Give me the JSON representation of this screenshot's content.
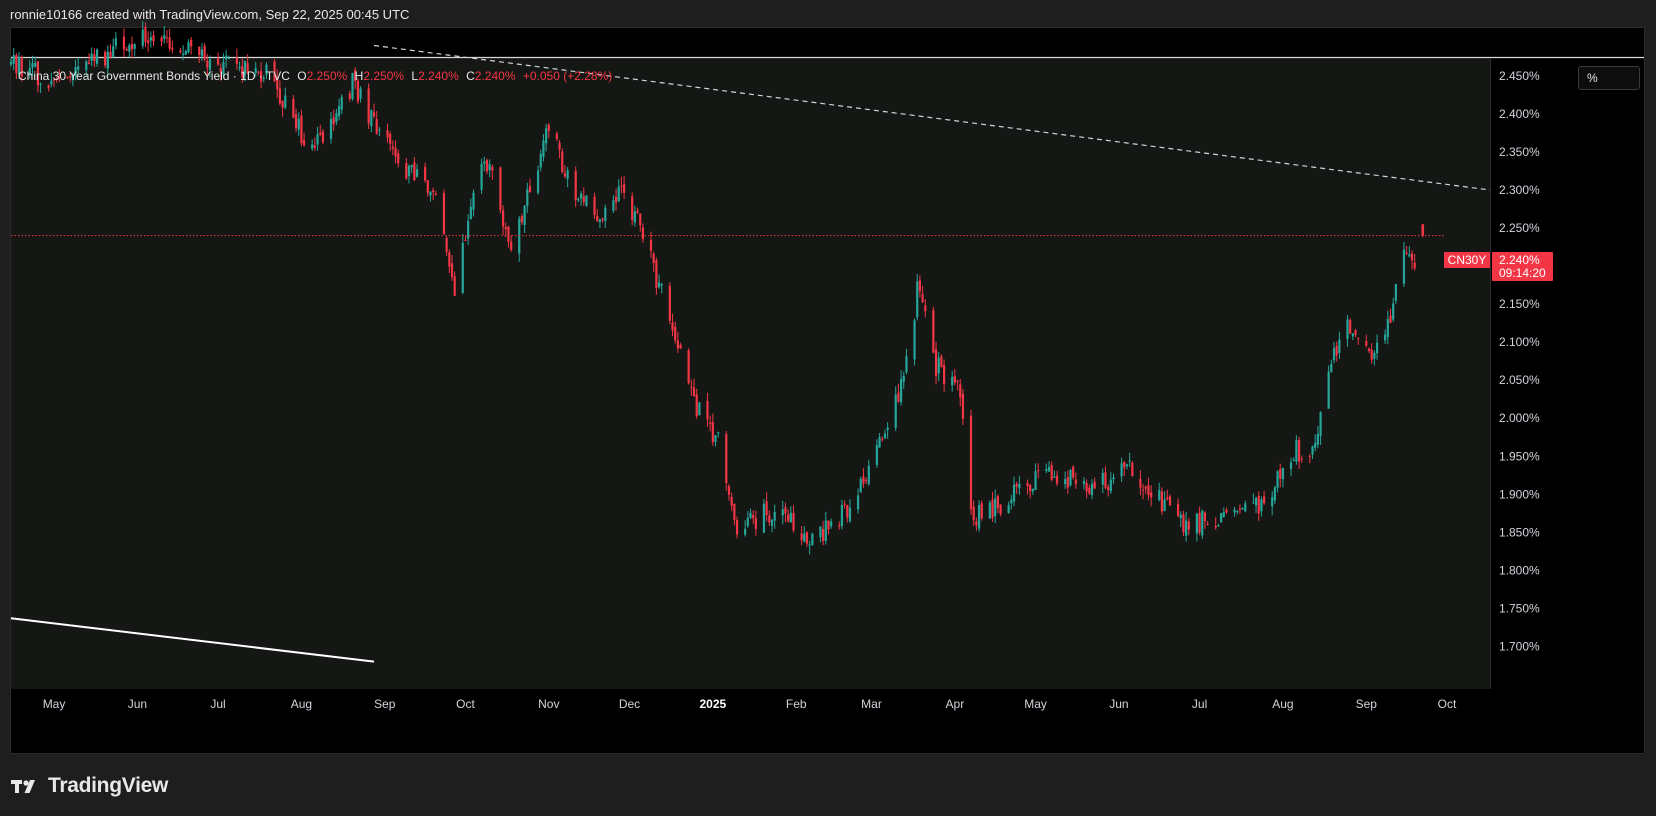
{
  "header": {
    "caption": "ronnie10166 created with TradingView.com, Sep 22, 2025 00:45 UTC"
  },
  "legend": {
    "symbol": "China 30 Year Government Bonds Yield · 1D · TVC",
    "open_label": "O",
    "open_value": "2.250%",
    "high_label": "H",
    "high_value": "2.250%",
    "low_label": "L",
    "low_value": "2.240%",
    "close_label": "C",
    "close_value": "2.240%",
    "change": "+0.050 (+2.28%)"
  },
  "price_scale": {
    "unit": "%",
    "ticks": [
      "2.450%",
      "2.400%",
      "2.350%",
      "2.300%",
      "2.250%",
      "2.200%",
      "2.150%",
      "2.100%",
      "2.050%",
      "2.000%",
      "1.950%",
      "1.900%",
      "1.850%",
      "1.800%",
      "1.750%",
      "1.700%"
    ],
    "last_price_label": "2.240%",
    "countdown": "09:14:20",
    "symbol_tag": "CN30Y"
  },
  "time_scale": {
    "labels": [
      "May",
      "Jun",
      "Jul",
      "Aug",
      "Sep",
      "Oct",
      "Nov",
      "Dec",
      "2025",
      "Feb",
      "Mar",
      "Apr",
      "May",
      "Jun",
      "Jul",
      "Aug",
      "Sep",
      "Oct"
    ]
  },
  "colors": {
    "up": "#26a69a",
    "down": "#f23645",
    "background": "#141714",
    "text": "#d1d4dc"
  },
  "chart_data": {
    "type": "candlestick",
    "y_unit": "%",
    "ylim": [
      1.68,
      2.49
    ],
    "x_range": [
      "2024-04-15",
      "2025-10-17"
    ],
    "anchors": [
      {
        "date": "2024-04-15",
        "value": 2.47
      },
      {
        "date": "2024-05-01",
        "value": 2.44
      },
      {
        "date": "2024-06-01",
        "value": 2.5
      },
      {
        "date": "2024-07-01",
        "value": 2.47
      },
      {
        "date": "2024-07-20",
        "value": 2.45
      },
      {
        "date": "2024-08-05",
        "value": 2.35
      },
      {
        "date": "2024-08-20",
        "value": 2.44
      },
      {
        "date": "2024-09-05",
        "value": 2.34
      },
      {
        "date": "2024-09-20",
        "value": 2.29
      },
      {
        "date": "2024-09-27",
        "value": 2.17
      },
      {
        "date": "2024-10-08",
        "value": 2.35
      },
      {
        "date": "2024-10-18",
        "value": 2.22
      },
      {
        "date": "2024-11-01",
        "value": 2.38
      },
      {
        "date": "2024-11-10",
        "value": 2.3
      },
      {
        "date": "2024-11-20",
        "value": 2.27
      },
      {
        "date": "2024-11-27",
        "value": 2.3
      },
      {
        "date": "2024-12-05",
        "value": 2.25
      },
      {
        "date": "2024-12-15",
        "value": 2.14
      },
      {
        "date": "2024-12-25",
        "value": 2.02
      },
      {
        "date": "2025-01-03",
        "value": 1.97
      },
      {
        "date": "2025-01-10",
        "value": 1.86
      },
      {
        "date": "2025-01-25",
        "value": 1.88
      },
      {
        "date": "2025-02-08",
        "value": 1.84
      },
      {
        "date": "2025-02-20",
        "value": 1.88
      },
      {
        "date": "2025-03-05",
        "value": 1.97
      },
      {
        "date": "2025-03-15",
        "value": 2.08
      },
      {
        "date": "2025-03-18",
        "value": 2.17
      },
      {
        "date": "2025-03-25",
        "value": 2.07
      },
      {
        "date": "2025-04-03",
        "value": 2.03
      },
      {
        "date": "2025-04-07",
        "value": 1.87
      },
      {
        "date": "2025-04-20",
        "value": 1.89
      },
      {
        "date": "2025-05-05",
        "value": 1.93
      },
      {
        "date": "2025-05-20",
        "value": 1.91
      },
      {
        "date": "2025-06-05",
        "value": 1.93
      },
      {
        "date": "2025-06-25",
        "value": 1.86
      },
      {
        "date": "2025-07-10",
        "value": 1.87
      },
      {
        "date": "2025-07-25",
        "value": 1.89
      },
      {
        "date": "2025-08-05",
        "value": 1.96
      },
      {
        "date": "2025-08-12",
        "value": 1.95
      },
      {
        "date": "2025-08-20",
        "value": 2.09
      },
      {
        "date": "2025-08-25",
        "value": 2.12
      },
      {
        "date": "2025-09-03",
        "value": 2.07
      },
      {
        "date": "2025-09-10",
        "value": 2.14
      },
      {
        "date": "2025-09-16",
        "value": 2.22
      },
      {
        "date": "2025-09-19",
        "value": 2.19
      },
      {
        "date": "2025-09-22",
        "value": 2.245
      }
    ],
    "last_candle": {
      "date": "2025-09-22",
      "open": 2.25,
      "high": 2.25,
      "low": 2.24,
      "close": 2.24
    },
    "trendlines": [
      {
        "style": "dashed",
        "color": "#d1d4dc",
        "start": {
          "date": "2024-08-28",
          "value": 2.49
        },
        "end": {
          "date": "2025-10-17",
          "value": 2.3
        }
      },
      {
        "style": "solid",
        "color": "#ffffff",
        "start": {
          "date": "2024-04-15",
          "value": 1.737
        },
        "end": {
          "date": "2024-08-28",
          "value": 1.68
        }
      }
    ],
    "last_price_line": 2.24,
    "grid": false,
    "legend": "top-left"
  }
}
